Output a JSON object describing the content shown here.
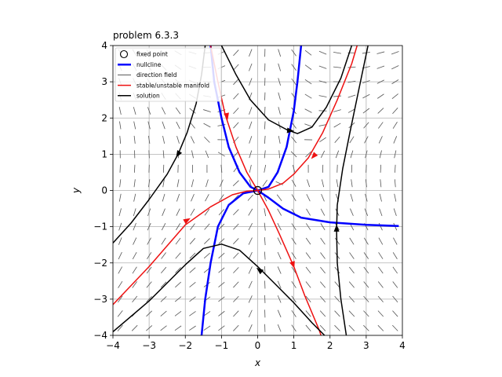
{
  "chart_data": {
    "type": "phase-portrait",
    "title": "problem 6.3.3",
    "xlabel": "x",
    "ylabel": "y",
    "xlim": [
      -4,
      4
    ],
    "ylim": [
      -4,
      4
    ],
    "xticks": [
      -4,
      -3,
      -2,
      -1,
      0,
      1,
      2,
      3,
      4
    ],
    "yticks": [
      -4,
      -3,
      -2,
      -1,
      0,
      1,
      2,
      3,
      4
    ],
    "grid": true,
    "legend": {
      "position": "top-left",
      "entries": [
        {
          "label": "fixed point",
          "style": "circle-marker",
          "color": "#000000"
        },
        {
          "label": "nullcline",
          "style": "line",
          "color": "#0000ff"
        },
        {
          "label": "direction field",
          "style": "line",
          "color": "#555555"
        },
        {
          "label": "stable/unstable manifold",
          "style": "line",
          "color": "#ee1111"
        },
        {
          "label": "solution",
          "style": "line",
          "color": "#000000"
        }
      ]
    },
    "colors": {
      "nullcline": "#0000ff",
      "field": "#555555",
      "manifold": "#ee1111",
      "solution": "#000000",
      "grid": "#b0b0b0"
    },
    "fixed_points": [
      {
        "x": 0,
        "y": 0
      }
    ],
    "series": [
      {
        "name": "nullcline",
        "kind": "nullcline",
        "points": [
          [
            -1.55,
            -4
          ],
          [
            -1.45,
            -3
          ],
          [
            -1.3,
            -2
          ],
          [
            -1.1,
            -1
          ],
          [
            -0.8,
            -0.4
          ],
          [
            -0.4,
            -0.08
          ],
          [
            0,
            0
          ],
          [
            0.3,
            0.1
          ],
          [
            0.55,
            0.5
          ],
          [
            0.8,
            1.2
          ],
          [
            1.0,
            2.2
          ],
          [
            1.1,
            3
          ],
          [
            1.2,
            4
          ]
        ]
      },
      {
        "name": "nullcline",
        "kind": "nullcline",
        "points": [
          [
            -1.3,
            4
          ],
          [
            -1.2,
            3
          ],
          [
            -1.0,
            2
          ],
          [
            -0.8,
            1.2
          ],
          [
            -0.5,
            0.5
          ],
          [
            -0.2,
            0.1
          ],
          [
            0,
            0
          ],
          [
            0.3,
            -0.2
          ],
          [
            0.7,
            -0.5
          ],
          [
            1.2,
            -0.75
          ],
          [
            2,
            -0.88
          ],
          [
            3,
            -0.95
          ],
          [
            3.9,
            -0.98
          ]
        ]
      },
      {
        "name": "stable/unstable manifold",
        "kind": "manifold",
        "points": [
          [
            -4,
            -3.15
          ],
          [
            -3,
            -2.1
          ],
          [
            -2,
            -0.95
          ],
          [
            -1.3,
            -0.45
          ],
          [
            -0.7,
            -0.12
          ],
          [
            -0.3,
            -0.02
          ],
          [
            0,
            0
          ],
          [
            0.3,
            0.04
          ],
          [
            0.7,
            0.2
          ],
          [
            1.0,
            0.45
          ],
          [
            1.4,
            0.9
          ],
          [
            1.8,
            1.6
          ],
          [
            2.2,
            2.5
          ],
          [
            2.6,
            3.5
          ],
          [
            2.75,
            4
          ]
        ]
      },
      {
        "name": "stable/unstable manifold",
        "kind": "manifold",
        "points": [
          [
            -1.3,
            4
          ],
          [
            -1.1,
            3
          ],
          [
            -0.9,
            2.1
          ],
          [
            -0.6,
            1.2
          ],
          [
            -0.3,
            0.5
          ],
          [
            0,
            0
          ],
          [
            0.3,
            -0.55
          ],
          [
            0.6,
            -1.2
          ],
          [
            1.0,
            -2.1
          ],
          [
            1.3,
            -2.9
          ],
          [
            1.7,
            -3.85
          ],
          [
            1.75,
            -4
          ]
        ]
      },
      {
        "name": "solution",
        "kind": "solution",
        "points": [
          [
            -4,
            -1.45
          ],
          [
            -3.5,
            -0.9
          ],
          [
            -3,
            -0.25
          ],
          [
            -2.5,
            0.45
          ],
          [
            -2.2,
            1.0
          ],
          [
            -1.95,
            1.6
          ],
          [
            -1.7,
            2.4
          ],
          [
            -1.55,
            3.2
          ],
          [
            -1.45,
            4
          ]
        ]
      },
      {
        "name": "solution",
        "kind": "solution",
        "points": [
          [
            -1.0,
            4
          ],
          [
            -0.6,
            3.2
          ],
          [
            -0.2,
            2.5
          ],
          [
            0.3,
            1.95
          ],
          [
            0.8,
            1.68
          ],
          [
            1.1,
            1.57
          ],
          [
            1.5,
            1.75
          ],
          [
            1.9,
            2.3
          ],
          [
            2.3,
            3.1
          ],
          [
            2.6,
            4
          ]
        ]
      },
      {
        "name": "solution",
        "kind": "solution",
        "points": [
          [
            2.45,
            -4
          ],
          [
            2.3,
            -3
          ],
          [
            2.2,
            -2
          ],
          [
            2.18,
            -1.1
          ],
          [
            2.2,
            -0.4
          ],
          [
            2.35,
            0.6
          ],
          [
            2.55,
            1.6
          ],
          [
            2.8,
            2.8
          ],
          [
            3.05,
            4
          ]
        ]
      },
      {
        "name": "solution",
        "kind": "solution",
        "points": [
          [
            -4,
            -3.9
          ],
          [
            -3,
            -3.05
          ],
          [
            -2,
            -2.05
          ],
          [
            -1.5,
            -1.6
          ],
          [
            -1.0,
            -1.48
          ],
          [
            -0.5,
            -1.65
          ],
          [
            0,
            -2.1
          ],
          [
            0.5,
            -2.6
          ],
          [
            1.0,
            -3.1
          ],
          [
            1.5,
            -3.65
          ],
          [
            1.85,
            -4
          ]
        ]
      }
    ],
    "arrows": [
      {
        "x": -0.85,
        "y": 2.05,
        "dx": 0.12,
        "dy": -0.6,
        "color": "manifold"
      },
      {
        "x": 0.98,
        "y": -2.05,
        "dx": 0.2,
        "dy": -0.6,
        "color": "manifold"
      },
      {
        "x": 1.55,
        "y": 0.95,
        "dx": -0.4,
        "dy": -0.45,
        "color": "manifold"
      },
      {
        "x": -1.95,
        "y": -0.82,
        "dx": 0.6,
        "dy": 0.35,
        "color": "manifold"
      },
      {
        "x": 0.9,
        "y": 1.65,
        "dx": 1,
        "dy": -0.1,
        "color": "solution"
      },
      {
        "x": -2.2,
        "y": 1.0,
        "dx": -0.3,
        "dy": -0.5,
        "color": "solution"
      },
      {
        "x": 2.18,
        "y": -1.05,
        "dx": 0,
        "dy": 1,
        "color": "solution"
      },
      {
        "x": 0.05,
        "y": -2.2,
        "dx": -1,
        "dy": 0.8,
        "color": "solution"
      }
    ]
  }
}
